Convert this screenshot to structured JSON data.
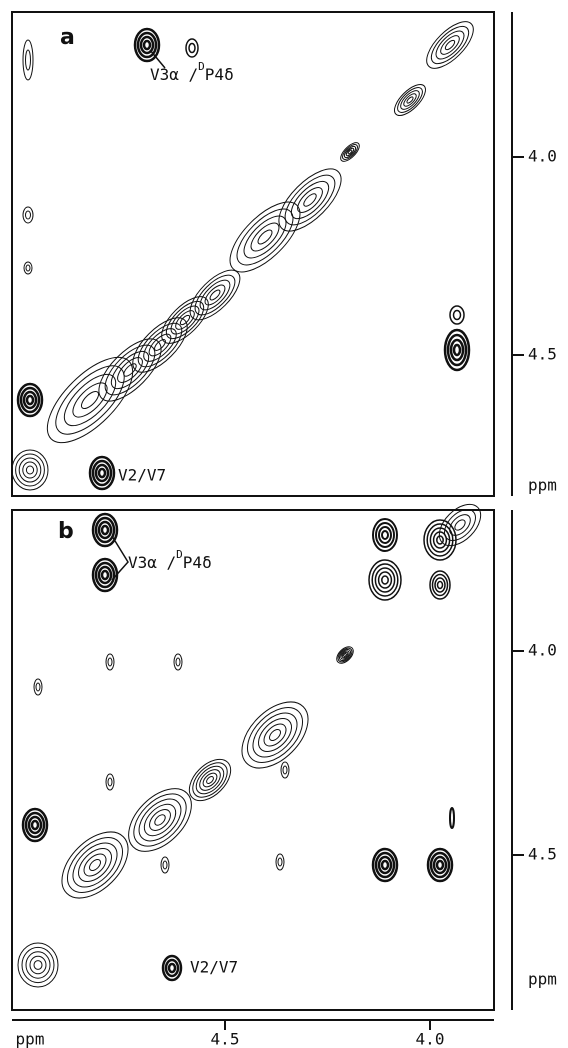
{
  "panels": [
    {
      "label": "a",
      "annotation_1": {
        "prefix": "V3α /",
        "superscript": "D",
        "suffix": "P4δ"
      },
      "annotation_2": "V2/V7",
      "right_ticks": [
        "4.0",
        "4.5",
        "ppm"
      ]
    },
    {
      "label": "b",
      "annotation_1": {
        "prefix": "V3α /",
        "superscript": "D",
        "suffix": "P4δ"
      },
      "annotation_2": "V2/V7",
      "right_ticks": [
        "4.0",
        "4.5",
        "ppm"
      ]
    }
  ],
  "bottom_ticks": [
    "ppm",
    "4.5",
    "4.0"
  ]
}
